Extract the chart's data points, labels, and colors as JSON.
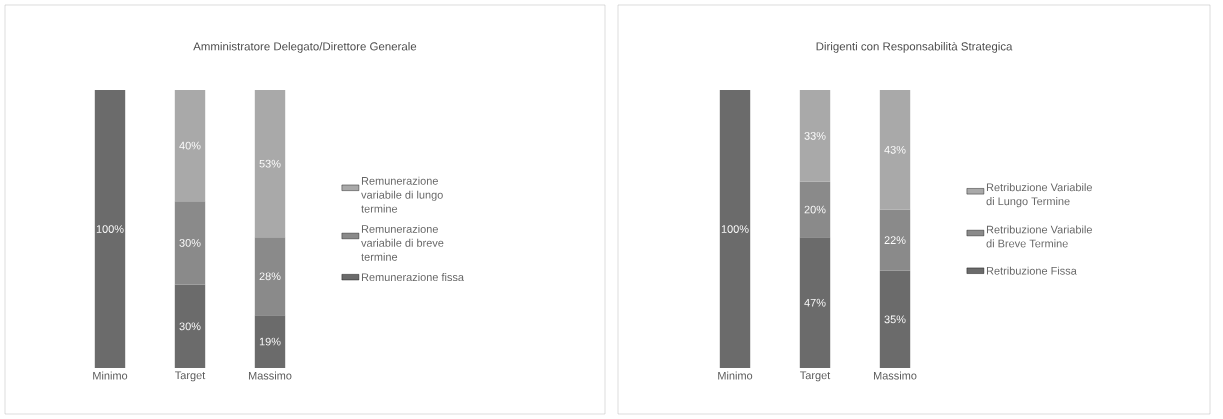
{
  "chart_data": [
    {
      "type": "bar",
      "stacked": true,
      "title": "Amministratore Delegato/Direttore Generale",
      "categories": [
        "Minimo",
        "Target",
        "Massimo"
      ],
      "legend": "right",
      "series": [
        {
          "name": "Remunerazione fissa",
          "color": "#6b6b6b",
          "values": [
            100,
            30,
            19
          ],
          "value_labels": [
            "100%",
            "30%",
            "19%"
          ]
        },
        {
          "name": "Remunerazione variabile di breve termine",
          "color": "#8a8a8a",
          "values": [
            null,
            30,
            28
          ],
          "value_labels": [
            null,
            "30%",
            "28%"
          ]
        },
        {
          "name": "Remunerazione variabile di lungo termine",
          "color": "#a9a9a9",
          "values": [
            null,
            40,
            53
          ],
          "value_labels": [
            null,
            "40%",
            "53%"
          ]
        }
      ]
    },
    {
      "type": "bar",
      "stacked": true,
      "title": "Dirigenti con Responsabilità Strategica",
      "categories": [
        "Minimo",
        "Target",
        "Massimo"
      ],
      "legend": "right",
      "series": [
        {
          "name": "Retribuzione Fissa",
          "color": "#6b6b6b",
          "values": [
            100,
            47,
            35
          ],
          "value_labels": [
            "100%",
            "47%",
            "35%"
          ]
        },
        {
          "name": "Retribuzione Variabile di Breve Termine",
          "color": "#8a8a8a",
          "values": [
            null,
            20,
            22
          ],
          "value_labels": [
            null,
            "20%",
            "22%"
          ]
        },
        {
          "name": "Retribuzione Variabile di Lungo Termine",
          "color": "#a9a9a9",
          "values": [
            null,
            33,
            43
          ],
          "value_labels": [
            null,
            "33%",
            "43%"
          ]
        }
      ]
    }
  ]
}
